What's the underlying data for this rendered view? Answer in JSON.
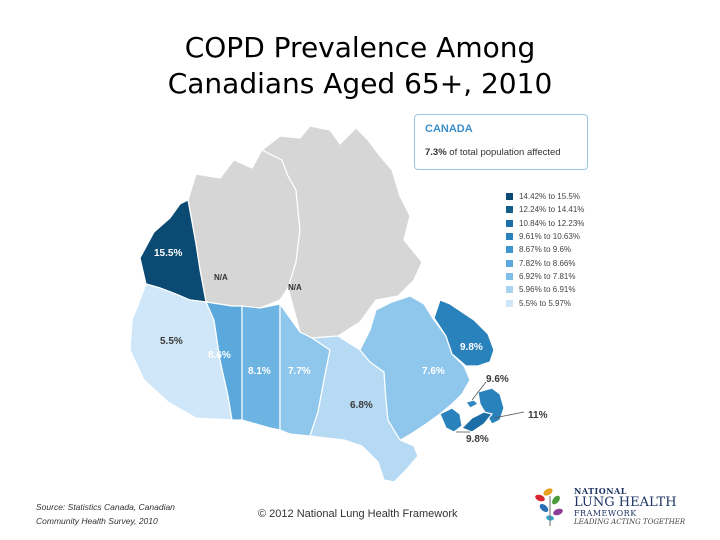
{
  "title": {
    "line1": "COPD Prevalence Among",
    "line2": "Canadians Aged 65+, 2010"
  },
  "summary": {
    "country": "CANADA",
    "value": "7.3%",
    "text": "of total population affected"
  },
  "legend": [
    {
      "label": "14.42% to 15.5%",
      "color": "#0b4a72"
    },
    {
      "label": "12.24% to 14.41%",
      "color": "#125d8c"
    },
    {
      "label": "10.84% to 12.23%",
      "color": "#1c6fa6"
    },
    {
      "label": "9.61% to 10.63%",
      "color": "#2a82bd"
    },
    {
      "label": "8.67% to 9.6%",
      "color": "#3d96d0"
    },
    {
      "label": "7.82% to 8.66%",
      "color": "#5aa8dc"
    },
    {
      "label": "6.92% to 7.81%",
      "color": "#7dbde8"
    },
    {
      "label": "5.96% to 6.91%",
      "color": "#a8d3f1"
    },
    {
      "label": "5.5% to 5.97%",
      "color": "#cfe7f8"
    }
  ],
  "regions": [
    {
      "id": "yukon",
      "name": "Yukon",
      "label": "15.5%",
      "color": "#0b4a72"
    },
    {
      "id": "nwt",
      "name": "Northwest Territories",
      "label": "N/A",
      "color": "#d6d6d6"
    },
    {
      "id": "nunavut",
      "name": "Nunavut",
      "label": "N/A",
      "color": "#d6d6d6"
    },
    {
      "id": "bc",
      "name": "British Columbia",
      "label": "5.5%",
      "color": "#cfe7f8"
    },
    {
      "id": "ab",
      "name": "Alberta",
      "label": "8.6%",
      "color": "#5aa8dc"
    },
    {
      "id": "sk",
      "name": "Saskatchewan",
      "label": "8.1%",
      "color": "#6db4e3"
    },
    {
      "id": "mb",
      "name": "Manitoba",
      "label": "7.7%",
      "color": "#8ec6ec"
    },
    {
      "id": "on",
      "name": "Ontario",
      "label": "6.8%",
      "color": "#b6daf3"
    },
    {
      "id": "qc",
      "name": "Quebec",
      "label": "7.6%",
      "color": "#8ec6ec"
    },
    {
      "id": "nl",
      "name": "Newfoundland and Labrador",
      "label": "9.8%",
      "color": "#2a82bd"
    },
    {
      "id": "pei",
      "name": "Prince Edward Island",
      "label": "9.6%",
      "color": "#2f88c4"
    },
    {
      "id": "ns",
      "name": "Nova Scotia",
      "label": "11%",
      "color": "#1c6fa6"
    },
    {
      "id": "nb",
      "name": "New Brunswick",
      "label": "9.8%",
      "color": "#2a82bd"
    }
  ],
  "footer": {
    "source_line1": "Source: Statistics Canada, Canadian",
    "source_line2": "Community Health Survey, 2010",
    "copyright": "© 2012 National Lung Health Framework"
  },
  "logo": {
    "line1": "NATIONAL",
    "line2": "LUNG HEALTH",
    "line3": "FRAMEWORK",
    "tagline": "LEADING ACTING TOGETHER"
  }
}
